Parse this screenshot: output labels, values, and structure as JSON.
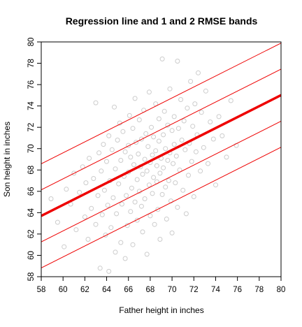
{
  "colors": {
    "points": "#cccccc",
    "regression_line": "#ee0000",
    "band_lines": "#ee0000",
    "axes": "#000000"
  },
  "chart_data": {
    "type": "scatter",
    "title": "Regression line and 1 and 2 RMSE bands",
    "xlabel": "Father height in inches",
    "ylabel": "Son height in inches",
    "xlim": [
      58,
      80
    ],
    "ylim": [
      58,
      80
    ],
    "x_ticks": [
      58,
      60,
      62,
      64,
      66,
      68,
      70,
      72,
      74,
      76,
      78,
      80
    ],
    "y_ticks": [
      58,
      60,
      62,
      64,
      66,
      68,
      70,
      72,
      74,
      76,
      78,
      80
    ],
    "grid": false,
    "legend": "none",
    "regression": {
      "intercept": 33.89,
      "slope": 0.514
    },
    "rmse": 2.44,
    "lines": [
      {
        "name": "regression",
        "offset_rmse": 0
      },
      {
        "name": "+1 RMSE",
        "offset_rmse": 1
      },
      {
        "name": "-1 RMSE",
        "offset_rmse": -1
      },
      {
        "name": "+2 RMSE",
        "offset_rmse": 2
      },
      {
        "name": "-2 RMSE",
        "offset_rmse": -2
      }
    ],
    "points": [
      [
        58.9,
        65.3
      ],
      [
        59.5,
        63.1
      ],
      [
        60.1,
        60.8
      ],
      [
        60.3,
        66.2
      ],
      [
        60.7,
        64.8
      ],
      [
        61.0,
        67.7
      ],
      [
        61.2,
        62.4
      ],
      [
        61.5,
        65.9
      ],
      [
        61.8,
        68.3
      ],
      [
        62.0,
        63.6
      ],
      [
        62.1,
        66.8
      ],
      [
        62.3,
        61.5
      ],
      [
        62.4,
        69.1
      ],
      [
        62.6,
        64.4
      ],
      [
        62.8,
        67.2
      ],
      [
        63.0,
        62.9
      ],
      [
        63.0,
        74.3
      ],
      [
        63.2,
        65.6
      ],
      [
        63.3,
        69.6
      ],
      [
        63.4,
        58.8
      ],
      [
        63.5,
        67.9
      ],
      [
        63.6,
        63.8
      ],
      [
        63.7,
        70.4
      ],
      [
        63.8,
        66.1
      ],
      [
        63.9,
        61.9
      ],
      [
        64.0,
        68.8
      ],
      [
        64.1,
        64.7
      ],
      [
        64.2,
        58.5
      ],
      [
        64.2,
        71.2
      ],
      [
        64.3,
        67.0
      ],
      [
        64.4,
        62.6
      ],
      [
        64.5,
        69.9
      ],
      [
        64.6,
        65.4
      ],
      [
        64.7,
        73.9
      ],
      [
        64.8,
        60.3
      ],
      [
        64.8,
        68.1
      ],
      [
        64.9,
        63.9
      ],
      [
        65.0,
        70.8
      ],
      [
        65.1,
        66.7
      ],
      [
        65.2,
        72.4
      ],
      [
        65.3,
        61.2
      ],
      [
        65.3,
        68.9
      ],
      [
        65.4,
        64.8
      ],
      [
        65.5,
        71.6
      ],
      [
        65.6,
        67.4
      ],
      [
        65.7,
        59.7
      ],
      [
        65.7,
        69.7
      ],
      [
        65.8,
        65.6
      ],
      [
        65.9,
        62.8
      ],
      [
        66.0,
        70.3
      ],
      [
        66.0,
        67.8
      ],
      [
        66.1,
        73.1
      ],
      [
        66.2,
        64.1
      ],
      [
        66.2,
        69.2
      ],
      [
        66.3,
        66.3
      ],
      [
        66.4,
        71.9
      ],
      [
        66.4,
        61.0
      ],
      [
        66.5,
        68.5
      ],
      [
        66.6,
        65.0
      ],
      [
        66.6,
        74.7
      ],
      [
        66.7,
        70.6
      ],
      [
        66.8,
        67.1
      ],
      [
        66.8,
        63.3
      ],
      [
        66.9,
        69.5
      ],
      [
        67.0,
        66.0
      ],
      [
        67.0,
        72.7
      ],
      [
        67.1,
        68.3
      ],
      [
        67.2,
        64.6
      ],
      [
        67.2,
        70.9
      ],
      [
        67.3,
        62.2
      ],
      [
        67.3,
        67.6
      ],
      [
        67.4,
        73.6
      ],
      [
        67.5,
        69.0
      ],
      [
        67.5,
        65.3
      ],
      [
        67.6,
        71.4
      ],
      [
        67.7,
        67.9
      ],
      [
        67.7,
        60.1
      ],
      [
        67.8,
        70.2
      ],
      [
        67.9,
        66.6
      ],
      [
        67.9,
        75.3
      ],
      [
        68.0,
        68.7
      ],
      [
        68.0,
        63.7
      ],
      [
        68.1,
        72.0
      ],
      [
        68.2,
        69.4
      ],
      [
        68.2,
        65.8
      ],
      [
        68.3,
        67.3
      ],
      [
        68.3,
        71.1
      ],
      [
        68.4,
        62.9
      ],
      [
        68.5,
        69.8
      ],
      [
        68.5,
        74.2
      ],
      [
        68.6,
        66.9
      ],
      [
        68.6,
        68.4
      ],
      [
        68.7,
        64.3
      ],
      [
        68.8,
        70.7
      ],
      [
        68.8,
        72.8
      ],
      [
        68.9,
        67.7
      ],
      [
        68.9,
        61.5
      ],
      [
        69.0,
        69.1
      ],
      [
        69.1,
        65.7
      ],
      [
        69.1,
        78.4
      ],
      [
        69.2,
        71.3
      ],
      [
        69.2,
        68.2
      ],
      [
        69.3,
        73.5
      ],
      [
        69.4,
        66.4
      ],
      [
        69.4,
        70.0
      ],
      [
        69.5,
        63.4
      ],
      [
        69.6,
        68.9
      ],
      [
        69.6,
        72.2
      ],
      [
        69.7,
        67.0
      ],
      [
        69.8,
        75.6
      ],
      [
        69.8,
        69.6
      ],
      [
        69.9,
        65.1
      ],
      [
        70.0,
        71.7
      ],
      [
        70.0,
        62.1
      ],
      [
        70.1,
        68.6
      ],
      [
        70.2,
        70.4
      ],
      [
        70.2,
        73.0
      ],
      [
        70.3,
        66.8
      ],
      [
        70.4,
        69.3
      ],
      [
        70.5,
        64.5
      ],
      [
        70.5,
        78.2
      ],
      [
        70.6,
        71.9
      ],
      [
        70.7,
        68.0
      ],
      [
        70.8,
        74.6
      ],
      [
        70.9,
        70.8
      ],
      [
        71.0,
        66.1
      ],
      [
        71.1,
        72.6
      ],
      [
        71.2,
        69.9
      ],
      [
        71.3,
        63.9
      ],
      [
        71.4,
        73.8
      ],
      [
        71.5,
        67.5
      ],
      [
        71.6,
        70.5
      ],
      [
        71.7,
        76.3
      ],
      [
        71.8,
        68.8
      ],
      [
        71.9,
        72.1
      ],
      [
        72.0,
        65.5
      ],
      [
        72.1,
        74.2
      ],
      [
        72.2,
        69.7
      ],
      [
        72.3,
        71.3
      ],
      [
        72.4,
        77.1
      ],
      [
        72.6,
        67.9
      ],
      [
        72.7,
        73.4
      ],
      [
        72.9,
        70.1
      ],
      [
        73.1,
        75.4
      ],
      [
        73.3,
        68.6
      ],
      [
        73.5,
        72.5
      ],
      [
        73.8,
        70.9
      ],
      [
        74.0,
        66.6
      ],
      [
        74.3,
        73.0
      ],
      [
        74.6,
        71.2
      ],
      [
        75.0,
        69.2
      ],
      [
        75.4,
        74.5
      ],
      [
        75.9,
        70.3
      ]
    ]
  }
}
